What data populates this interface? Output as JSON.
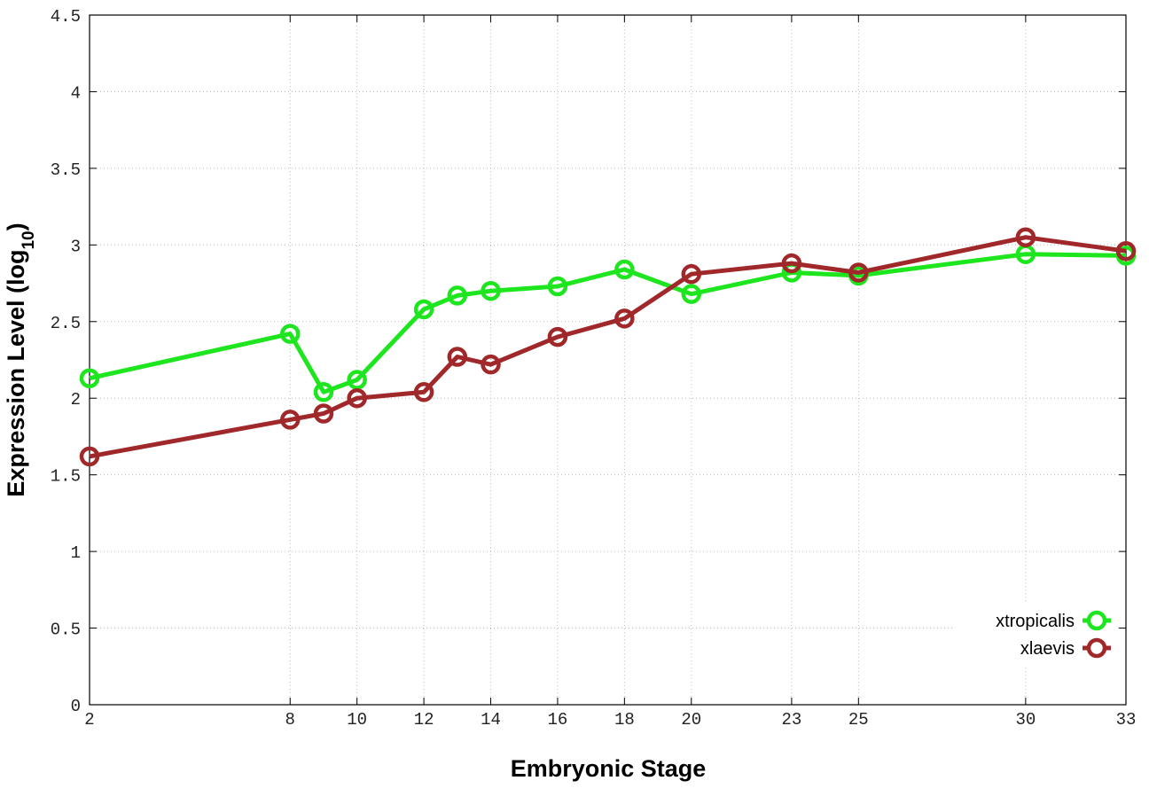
{
  "chart_data": {
    "type": "line",
    "title": "",
    "xlabel": "Embryonic Stage",
    "ylabel": "Expression Level (log",
    "ylabel_subscript": "10",
    "ylabel_suffix": ")",
    "x": [
      2,
      8,
      9,
      10,
      12,
      13,
      14,
      16,
      18,
      20,
      23,
      25,
      30,
      33
    ],
    "x_tick_labels": [
      "2",
      "8",
      "10",
      "12",
      "14",
      "16",
      "18",
      "20",
      "23",
      "25",
      "30",
      "33"
    ],
    "x_tick_values": [
      2,
      8,
      10,
      12,
      14,
      16,
      18,
      20,
      23,
      25,
      30,
      33
    ],
    "xlim": [
      2,
      33
    ],
    "ylim": [
      0,
      4.5
    ],
    "y_ticks": [
      0,
      0.5,
      1,
      1.5,
      2,
      2.5,
      3,
      3.5,
      4,
      4.5
    ],
    "y_tick_labels": [
      "0",
      "0.5",
      "1",
      "1.5",
      "2",
      "2.5",
      "3",
      "3.5",
      "4",
      "4.5"
    ],
    "grid": true,
    "legend_position": "bottom-right",
    "series": [
      {
        "name": "xtropicalis",
        "color": "#1ee61e",
        "values": [
          2.13,
          2.42,
          2.04,
          2.12,
          2.58,
          2.67,
          2.7,
          2.73,
          2.84,
          2.68,
          2.82,
          2.8,
          2.94,
          2.93
        ]
      },
      {
        "name": "xlaevis",
        "color": "#a0282a",
        "values": [
          1.62,
          1.86,
          1.9,
          2.0,
          2.04,
          2.27,
          2.22,
          2.4,
          2.52,
          2.81,
          2.88,
          2.82,
          3.05,
          2.96
        ]
      }
    ]
  }
}
